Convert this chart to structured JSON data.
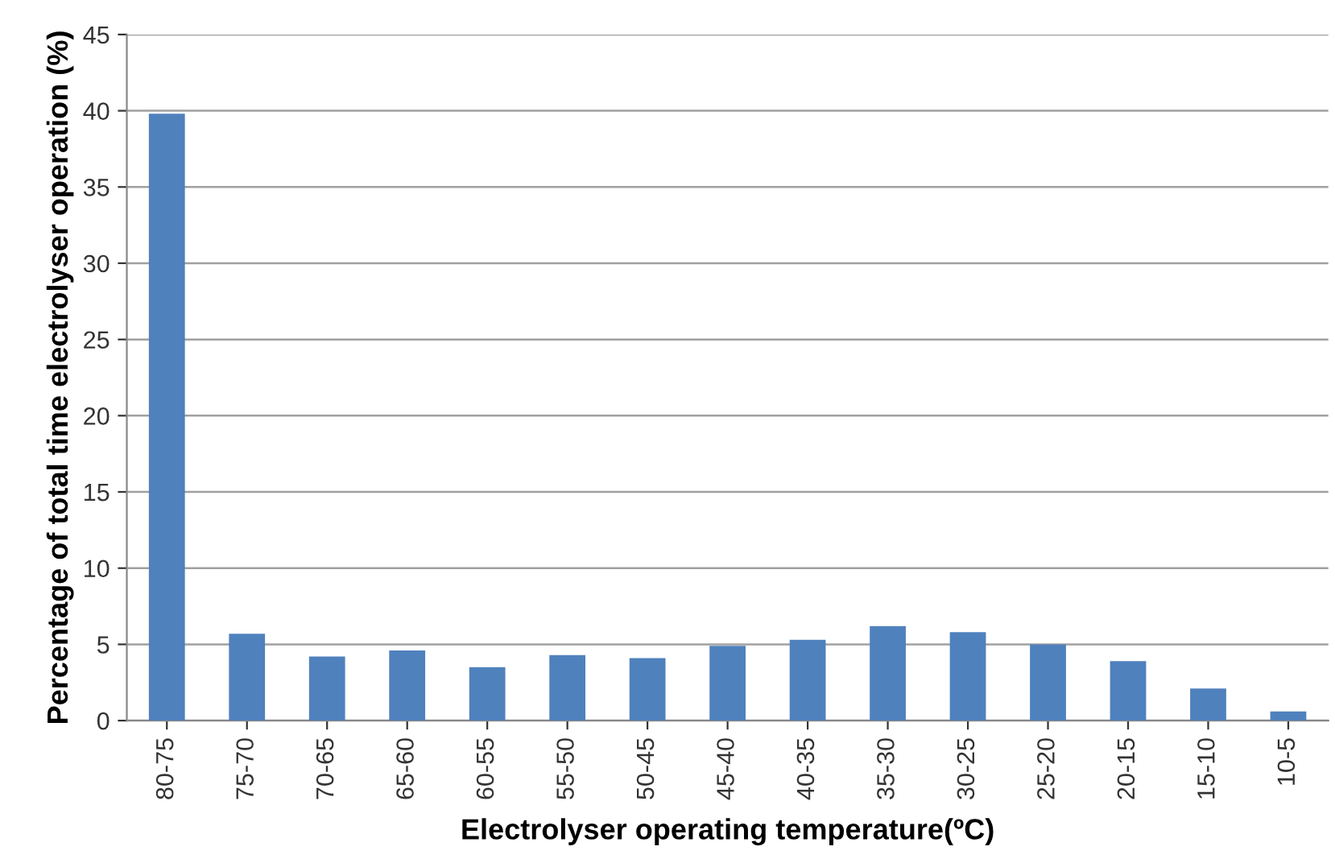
{
  "chart_data": {
    "type": "bar",
    "xlabel": "Electrolyser operating temperature(ºC)",
    "ylabel": "Percentage of total time electrolyser operation (%)",
    "categories": [
      "80-75",
      "75-70",
      "70-65",
      "65-60",
      "60-55",
      "55-50",
      "50-45",
      "45-40",
      "40-35",
      "35-30",
      "30-25",
      "25-20",
      "20-15",
      "15-10",
      "10-5"
    ],
    "values": [
      39.8,
      5.7,
      4.2,
      4.6,
      3.5,
      4.3,
      4.1,
      4.9,
      5.3,
      6.2,
      5.8,
      5.0,
      3.9,
      2.1,
      0.6
    ],
    "color": "#4f81bd",
    "ylim": [
      0,
      45
    ],
    "yticks": [
      0,
      5,
      10,
      15,
      20,
      25,
      30,
      35,
      40,
      45
    ],
    "grid": "y"
  }
}
